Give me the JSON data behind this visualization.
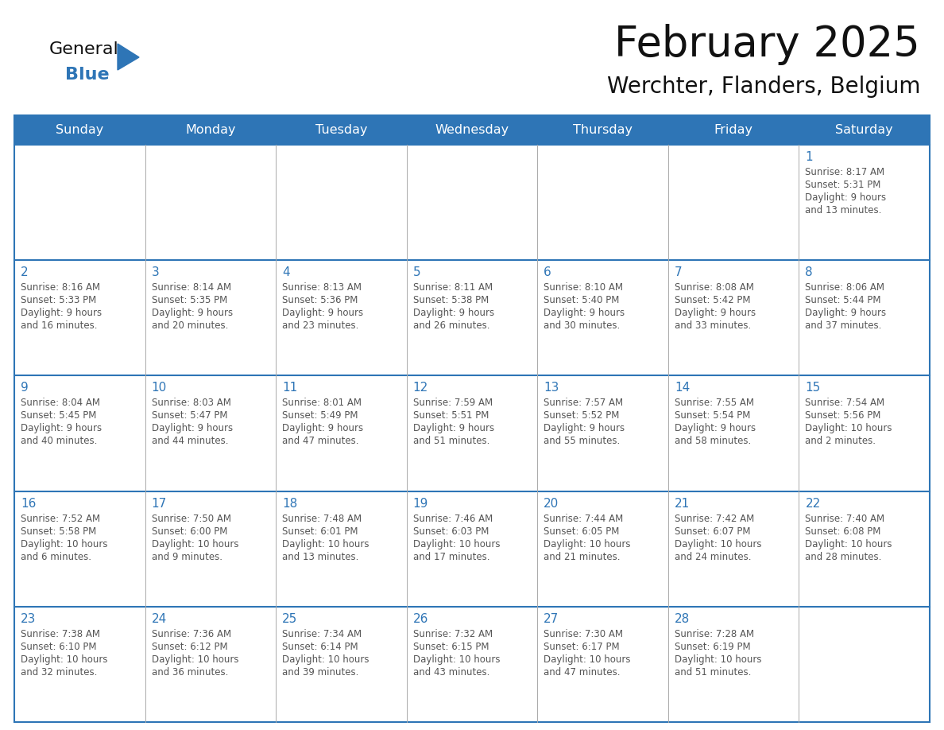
{
  "title": "February 2025",
  "subtitle": "Werchter, Flanders, Belgium",
  "header_bg": "#2E75B6",
  "header_text_color": "#FFFFFF",
  "day_names": [
    "Sunday",
    "Monday",
    "Tuesday",
    "Wednesday",
    "Thursday",
    "Friday",
    "Saturday"
  ],
  "bg_color": "#FFFFFF",
  "cell_bg_color": "#FFFFFF",
  "row_separator_color": "#2E75B6",
  "col_separator_color": "#AAAAAA",
  "outer_border_color": "#2E75B6",
  "day_num_color": "#2E75B6",
  "info_text_color": "#555555",
  "title_color": "#111111",
  "subtitle_color": "#111111",
  "logo_general_color": "#111111",
  "logo_blue_color": "#2E75B6",
  "logo_triangle_color": "#2E75B6",
  "days": [
    {
      "date": 1,
      "col": 6,
      "row": 0,
      "sunrise": "8:17 AM",
      "sunset": "5:31 PM",
      "daylight": "9 hours and 13 minutes."
    },
    {
      "date": 2,
      "col": 0,
      "row": 1,
      "sunrise": "8:16 AM",
      "sunset": "5:33 PM",
      "daylight": "9 hours and 16 minutes."
    },
    {
      "date": 3,
      "col": 1,
      "row": 1,
      "sunrise": "8:14 AM",
      "sunset": "5:35 PM",
      "daylight": "9 hours and 20 minutes."
    },
    {
      "date": 4,
      "col": 2,
      "row": 1,
      "sunrise": "8:13 AM",
      "sunset": "5:36 PM",
      "daylight": "9 hours and 23 minutes."
    },
    {
      "date": 5,
      "col": 3,
      "row": 1,
      "sunrise": "8:11 AM",
      "sunset": "5:38 PM",
      "daylight": "9 hours and 26 minutes."
    },
    {
      "date": 6,
      "col": 4,
      "row": 1,
      "sunrise": "8:10 AM",
      "sunset": "5:40 PM",
      "daylight": "9 hours and 30 minutes."
    },
    {
      "date": 7,
      "col": 5,
      "row": 1,
      "sunrise": "8:08 AM",
      "sunset": "5:42 PM",
      "daylight": "9 hours and 33 minutes."
    },
    {
      "date": 8,
      "col": 6,
      "row": 1,
      "sunrise": "8:06 AM",
      "sunset": "5:44 PM",
      "daylight": "9 hours and 37 minutes."
    },
    {
      "date": 9,
      "col": 0,
      "row": 2,
      "sunrise": "8:04 AM",
      "sunset": "5:45 PM",
      "daylight": "9 hours and 40 minutes."
    },
    {
      "date": 10,
      "col": 1,
      "row": 2,
      "sunrise": "8:03 AM",
      "sunset": "5:47 PM",
      "daylight": "9 hours and 44 minutes."
    },
    {
      "date": 11,
      "col": 2,
      "row": 2,
      "sunrise": "8:01 AM",
      "sunset": "5:49 PM",
      "daylight": "9 hours and 47 minutes."
    },
    {
      "date": 12,
      "col": 3,
      "row": 2,
      "sunrise": "7:59 AM",
      "sunset": "5:51 PM",
      "daylight": "9 hours and 51 minutes."
    },
    {
      "date": 13,
      "col": 4,
      "row": 2,
      "sunrise": "7:57 AM",
      "sunset": "5:52 PM",
      "daylight": "9 hours and 55 minutes."
    },
    {
      "date": 14,
      "col": 5,
      "row": 2,
      "sunrise": "7:55 AM",
      "sunset": "5:54 PM",
      "daylight": "9 hours and 58 minutes."
    },
    {
      "date": 15,
      "col": 6,
      "row": 2,
      "sunrise": "7:54 AM",
      "sunset": "5:56 PM",
      "daylight": "10 hours and 2 minutes."
    },
    {
      "date": 16,
      "col": 0,
      "row": 3,
      "sunrise": "7:52 AM",
      "sunset": "5:58 PM",
      "daylight": "10 hours and 6 minutes."
    },
    {
      "date": 17,
      "col": 1,
      "row": 3,
      "sunrise": "7:50 AM",
      "sunset": "6:00 PM",
      "daylight": "10 hours and 9 minutes."
    },
    {
      "date": 18,
      "col": 2,
      "row": 3,
      "sunrise": "7:48 AM",
      "sunset": "6:01 PM",
      "daylight": "10 hours and 13 minutes."
    },
    {
      "date": 19,
      "col": 3,
      "row": 3,
      "sunrise": "7:46 AM",
      "sunset": "6:03 PM",
      "daylight": "10 hours and 17 minutes."
    },
    {
      "date": 20,
      "col": 4,
      "row": 3,
      "sunrise": "7:44 AM",
      "sunset": "6:05 PM",
      "daylight": "10 hours and 21 minutes."
    },
    {
      "date": 21,
      "col": 5,
      "row": 3,
      "sunrise": "7:42 AM",
      "sunset": "6:07 PM",
      "daylight": "10 hours and 24 minutes."
    },
    {
      "date": 22,
      "col": 6,
      "row": 3,
      "sunrise": "7:40 AM",
      "sunset": "6:08 PM",
      "daylight": "10 hours and 28 minutes."
    },
    {
      "date": 23,
      "col": 0,
      "row": 4,
      "sunrise": "7:38 AM",
      "sunset": "6:10 PM",
      "daylight": "10 hours and 32 minutes."
    },
    {
      "date": 24,
      "col": 1,
      "row": 4,
      "sunrise": "7:36 AM",
      "sunset": "6:12 PM",
      "daylight": "10 hours and 36 minutes."
    },
    {
      "date": 25,
      "col": 2,
      "row": 4,
      "sunrise": "7:34 AM",
      "sunset": "6:14 PM",
      "daylight": "10 hours and 39 minutes."
    },
    {
      "date": 26,
      "col": 3,
      "row": 4,
      "sunrise": "7:32 AM",
      "sunset": "6:15 PM",
      "daylight": "10 hours and 43 minutes."
    },
    {
      "date": 27,
      "col": 4,
      "row": 4,
      "sunrise": "7:30 AM",
      "sunset": "6:17 PM",
      "daylight": "10 hours and 47 minutes."
    },
    {
      "date": 28,
      "col": 5,
      "row": 4,
      "sunrise": "7:28 AM",
      "sunset": "6:19 PM",
      "daylight": "10 hours and 51 minutes."
    }
  ]
}
